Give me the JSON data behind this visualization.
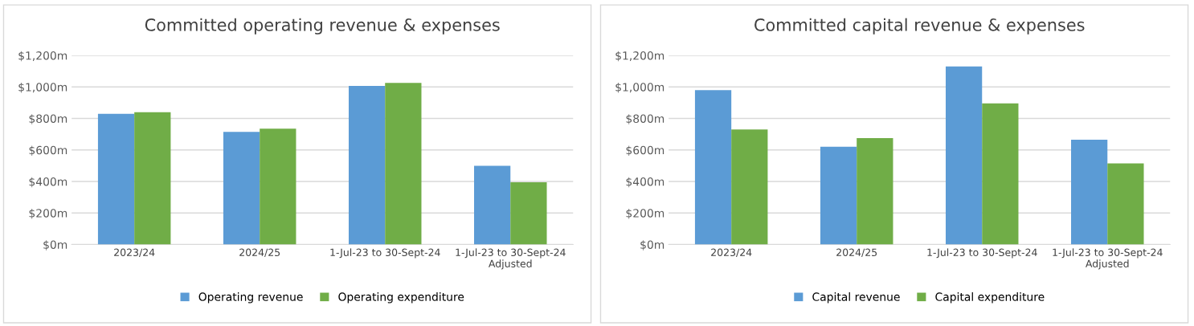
{
  "chart_data": [
    {
      "type": "bar",
      "title": "Committed operating revenue & expenses",
      "categories": [
        "2023/24",
        "2024/25",
        "1-Jul-23 to 30-Sept-24",
        "1-Jul-23 to 30-Sept-24\nAdjusted"
      ],
      "series": [
        {
          "name": "Operating revenue",
          "color": "#5b9bd5",
          "values": [
            830,
            715,
            1007,
            500
          ]
        },
        {
          "name": "Operating expenditure",
          "color": "#70ad47",
          "values": [
            840,
            735,
            1026,
            395
          ]
        }
      ],
      "ylim": [
        0,
        1200
      ],
      "yticks": [
        {
          "value": 0,
          "label": "$0m"
        },
        {
          "value": 200,
          "label": "$200m"
        },
        {
          "value": 400,
          "label": "$400m"
        },
        {
          "value": 600,
          "label": "$600m"
        },
        {
          "value": 800,
          "label": "$800m"
        },
        {
          "value": 1000,
          "label": "$1,000m"
        },
        {
          "value": 1200,
          "label": "$1,200m"
        }
      ],
      "grid": "y",
      "legend": "bottom"
    },
    {
      "type": "bar",
      "title": "Committed capital revenue & expenses",
      "categories": [
        "2023/24",
        "2024/25",
        "1-Jul-23 to 30-Sept-24",
        "1-Jul-23 to 30-Sept-24\nAdjusted"
      ],
      "series": [
        {
          "name": "Capital revenue",
          "color": "#5b9bd5",
          "values": [
            980,
            620,
            1130,
            665
          ]
        },
        {
          "name": "Capital expenditure",
          "color": "#70ad47",
          "values": [
            730,
            675,
            895,
            515
          ]
        }
      ],
      "ylim": [
        0,
        1200
      ],
      "yticks": [
        {
          "value": 0,
          "label": "$0m"
        },
        {
          "value": 200,
          "label": "$200m"
        },
        {
          "value": 400,
          "label": "$400m"
        },
        {
          "value": 600,
          "label": "$600m"
        },
        {
          "value": 800,
          "label": "$800m"
        },
        {
          "value": 1000,
          "label": "$1,000m"
        },
        {
          "value": 1200,
          "label": "$1,200m"
        }
      ],
      "grid": "y",
      "legend": "bottom"
    }
  ]
}
